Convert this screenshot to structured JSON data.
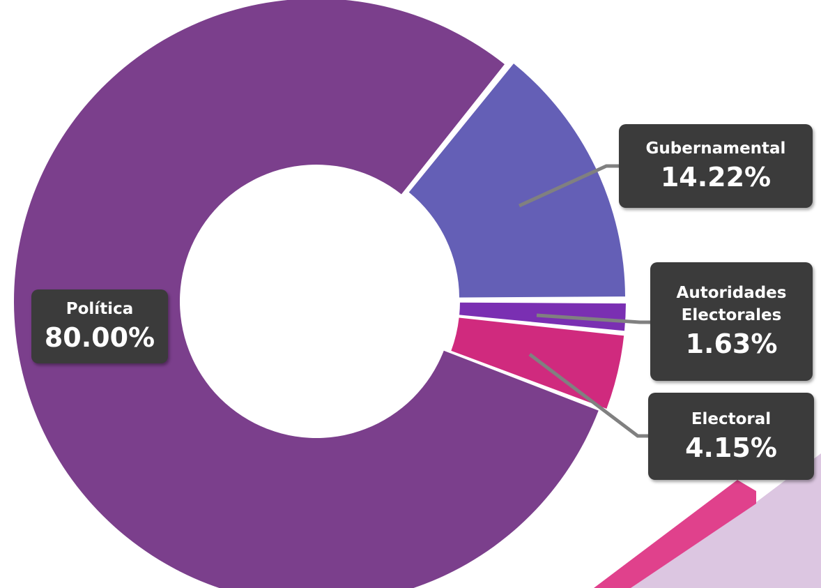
{
  "chart_data": {
    "type": "donut",
    "categories": [
      "Política",
      "Gubernamental",
      "Autoridades Electorales",
      "Electoral"
    ],
    "values": [
      80,
      14.22,
      1.63,
      4.15
    ],
    "value_labels": [
      "80.00%",
      "14.22%",
      "1.63%",
      "4.15%"
    ],
    "colors": [
      "#7b3f8c",
      "#645fb6",
      "#7a2fb2",
      "#d02a7e"
    ]
  }
}
